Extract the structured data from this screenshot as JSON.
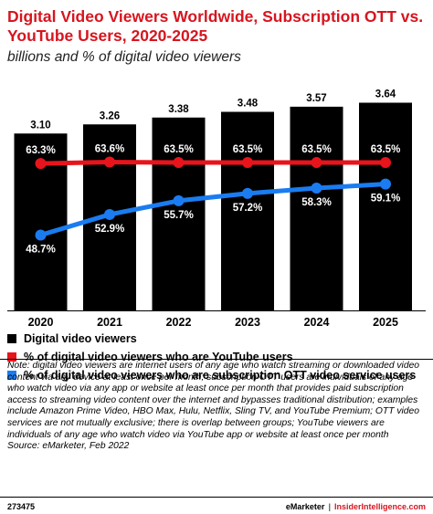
{
  "title": "Digital Video Viewers Worldwide, Subscription OTT vs. YouTube Users, 2020-2025",
  "subtitle": "billions and % of digital video viewers",
  "colors": {
    "bars": "#000000",
    "youtube": "#e8141c",
    "ott": "#1a7cf0",
    "title": "#d7151f"
  },
  "chart_data": {
    "type": "bar",
    "categories": [
      "2020",
      "2021",
      "2022",
      "2023",
      "2024",
      "2025"
    ],
    "series": [
      {
        "name": "Digital video viewers",
        "type": "bar",
        "values": [
          3.1,
          3.26,
          3.38,
          3.48,
          3.57,
          3.64
        ],
        "labels": [
          "3.10",
          "3.26",
          "3.38",
          "3.48",
          "3.57",
          "3.64"
        ]
      },
      {
        "name": "% of digital video viewers who are YouTube users",
        "type": "line",
        "values": [
          63.3,
          63.6,
          63.5,
          63.5,
          63.5,
          63.5
        ],
        "labels": [
          "63.3%",
          "63.6%",
          "63.5%",
          "63.5%",
          "63.5%",
          "63.5%"
        ]
      },
      {
        "name": "% of digital video viewers who are subscription OTT video service users",
        "type": "line",
        "values": [
          48.7,
          52.9,
          55.7,
          57.2,
          58.3,
          59.1
        ],
        "labels": [
          "48.7%",
          "52.9%",
          "55.7%",
          "57.2%",
          "58.3%",
          "59.1%"
        ]
      }
    ],
    "legend_placement": "bottom"
  },
  "legend": [
    "Digital video viewers",
    "% of digital video viewers who are YouTube users",
    "% of digital video viewers who are subscription OTT video service users"
  ],
  "note": "Note: digital video viewers are internet users of any age who watch streaming or downloaded video content via any device at least once per month; subscription OTT users are individuals of any age who watch video via any app or website at least once per month that provides paid subscription access to streaming video content over the internet and bypasses traditional distribution; examples include Amazon Prime Video, HBO Max, Hulu, Netflix, Sling TV, and YouTube Premium; OTT video services are not mutually exclusive; there is overlap between groups; YouTube viewers are individuals of any age who watch video via YouTube app or website at least once per month",
  "source": "Source: eMarketer, Feb 2022",
  "footer": {
    "id": "273475",
    "brand": "eMarketer",
    "separator": "|",
    "brand2": "InsiderIntelligence.com"
  }
}
